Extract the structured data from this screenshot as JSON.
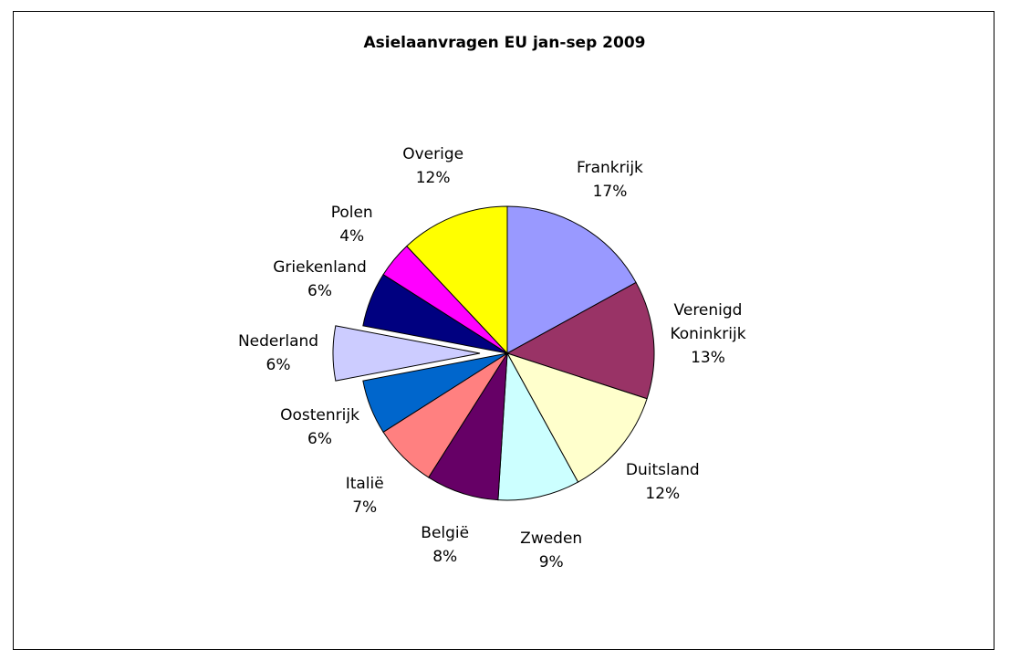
{
  "chart_data": {
    "type": "pie",
    "title": "Asielaanvragen EU jan-sep 2009",
    "categories": [
      "Frankrijk",
      "Verenigd Koninkrijk",
      "Duitsland",
      "Zweden",
      "België",
      "Italië",
      "Oostenrijk",
      "Nederland",
      "Griekenland",
      "Polen",
      "Overige"
    ],
    "values": [
      17,
      13,
      12,
      9,
      8,
      7,
      6,
      6,
      6,
      4,
      12
    ],
    "value_labels": [
      "17%",
      "13%",
      "12%",
      "9%",
      "8%",
      "7%",
      "6%",
      "6%",
      "6%",
      "4%",
      "12%"
    ],
    "colors": [
      "#9999ff",
      "#993366",
      "#ffffcc",
      "#ccffff",
      "#660066",
      "#ff8080",
      "#0066cc",
      "#ccccff",
      "#000080",
      "#ff00ff",
      "#ffff00"
    ],
    "exploded": "Nederland"
  }
}
